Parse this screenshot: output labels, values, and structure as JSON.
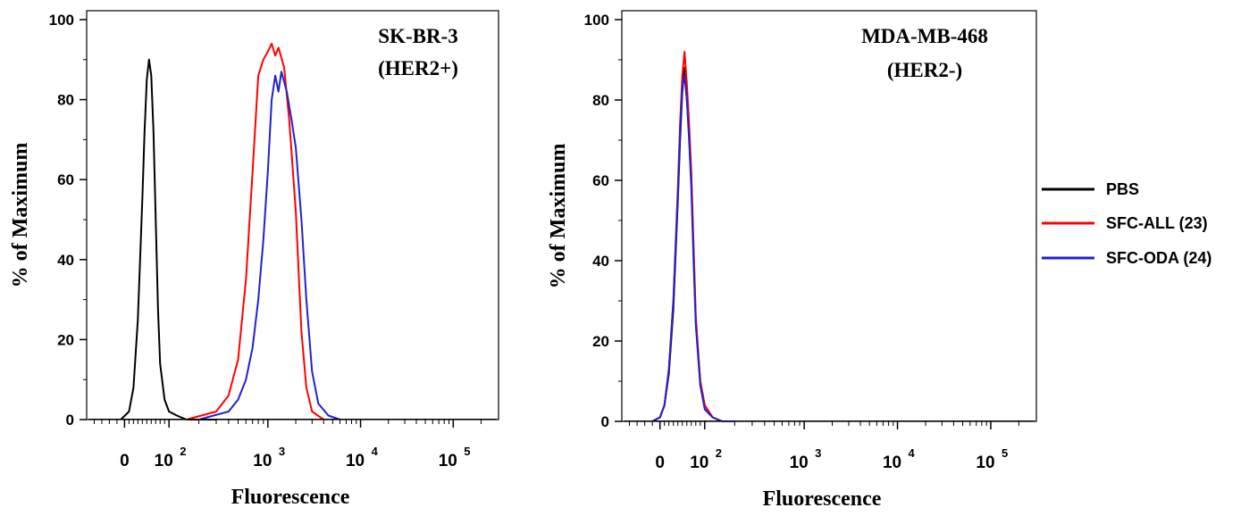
{
  "chart_data": [
    {
      "type": "line",
      "title": "SK-BR-3",
      "subtitle": "(HER2+)",
      "xlabel": "Fluorescence",
      "ylabel": "% of Maximum",
      "ylim": [
        0,
        100
      ],
      "yticks": [
        "0",
        "20",
        "40",
        "60",
        "80",
        "100"
      ],
      "xticks": [
        {
          "base": "0",
          "exp": ""
        },
        {
          "base": "10",
          "exp": "2"
        },
        {
          "base": "10",
          "exp": "3"
        },
        {
          "base": "10",
          "exp": "4"
        },
        {
          "base": "10",
          "exp": "5"
        }
      ],
      "x_scale": "biexponential",
      "series": [
        {
          "name": "PBS",
          "color": "#000000",
          "x": [
            -10,
            10,
            20,
            30,
            40,
            45,
            50,
            55,
            60,
            65,
            70,
            75,
            80,
            90,
            100,
            120,
            150,
            200,
            300
          ],
          "y": [
            0,
            2,
            8,
            25,
            55,
            72,
            85,
            90,
            86,
            72,
            50,
            28,
            14,
            5,
            2,
            1,
            0,
            0,
            0
          ]
        },
        {
          "name": "SFC-ALL (23)",
          "color": "#ff0000",
          "x": [
            150,
            300,
            400,
            500,
            600,
            700,
            800,
            900,
            1000,
            1100,
            1200,
            1300,
            1500,
            1700,
            2000,
            2300,
            2600,
            3000,
            4000
          ],
          "y": [
            0,
            2,
            6,
            15,
            35,
            62,
            86,
            90,
            92,
            94,
            91,
            93,
            88,
            75,
            52,
            22,
            8,
            2,
            0
          ]
        },
        {
          "name": "SFC-ODA (24)",
          "color": "#2222cc",
          "x": [
            200,
            400,
            500,
            600,
            700,
            800,
            900,
            1000,
            1100,
            1200,
            1300,
            1400,
            1600,
            1800,
            2000,
            2300,
            2600,
            3000,
            3500,
            4500,
            6000
          ],
          "y": [
            0,
            2,
            5,
            10,
            18,
            30,
            45,
            62,
            80,
            86,
            82,
            87,
            82,
            75,
            68,
            50,
            30,
            12,
            4,
            1,
            0
          ]
        }
      ]
    },
    {
      "type": "line",
      "title": "MDA-MB-468",
      "subtitle": "(HER2-)",
      "xlabel": "Fluorescence",
      "ylabel": "% of Maximum",
      "ylim": [
        0,
        100
      ],
      "yticks": [
        "0",
        "20",
        "40",
        "60",
        "80",
        "100"
      ],
      "xticks": [
        {
          "base": "0",
          "exp": ""
        },
        {
          "base": "10",
          "exp": "2"
        },
        {
          "base": "10",
          "exp": "3"
        },
        {
          "base": "10",
          "exp": "4"
        },
        {
          "base": "10",
          "exp": "5"
        }
      ],
      "x_scale": "biexponential",
      "series": [
        {
          "name": "PBS",
          "color": "#000000",
          "x": [
            -20,
            0,
            10,
            20,
            30,
            40,
            45,
            50,
            55,
            60,
            65,
            70,
            75,
            80,
            90,
            100,
            120,
            150,
            200
          ],
          "y": [
            0,
            1,
            4,
            12,
            28,
            55,
            70,
            82,
            88,
            80,
            72,
            60,
            42,
            25,
            10,
            4,
            1,
            0,
            0
          ]
        },
        {
          "name": "SFC-ALL (23)",
          "color": "#ff0000",
          "x": [
            -20,
            0,
            10,
            20,
            30,
            40,
            45,
            50,
            55,
            60,
            65,
            70,
            75,
            80,
            90,
            100,
            120,
            150,
            200
          ],
          "y": [
            0,
            1,
            4,
            13,
            30,
            58,
            74,
            86,
            92,
            84,
            74,
            62,
            44,
            26,
            10,
            4,
            1,
            0,
            0
          ]
        },
        {
          "name": "SFC-ODA (24)",
          "color": "#2222cc",
          "x": [
            -20,
            0,
            10,
            20,
            30,
            40,
            45,
            50,
            55,
            60,
            65,
            70,
            75,
            80,
            90,
            100,
            120,
            150,
            200
          ],
          "y": [
            0,
            1,
            4,
            13,
            30,
            56,
            72,
            83,
            86,
            80,
            70,
            58,
            40,
            24,
            9,
            3,
            1,
            0,
            0
          ]
        }
      ]
    }
  ],
  "legend": {
    "placement": "right",
    "items": [
      {
        "label": "PBS",
        "color": "#000000"
      },
      {
        "label": "SFC-ALL (23)",
        "color": "#ff0000"
      },
      {
        "label": "SFC-ODA (24)",
        "color": "#2222cc"
      }
    ]
  }
}
